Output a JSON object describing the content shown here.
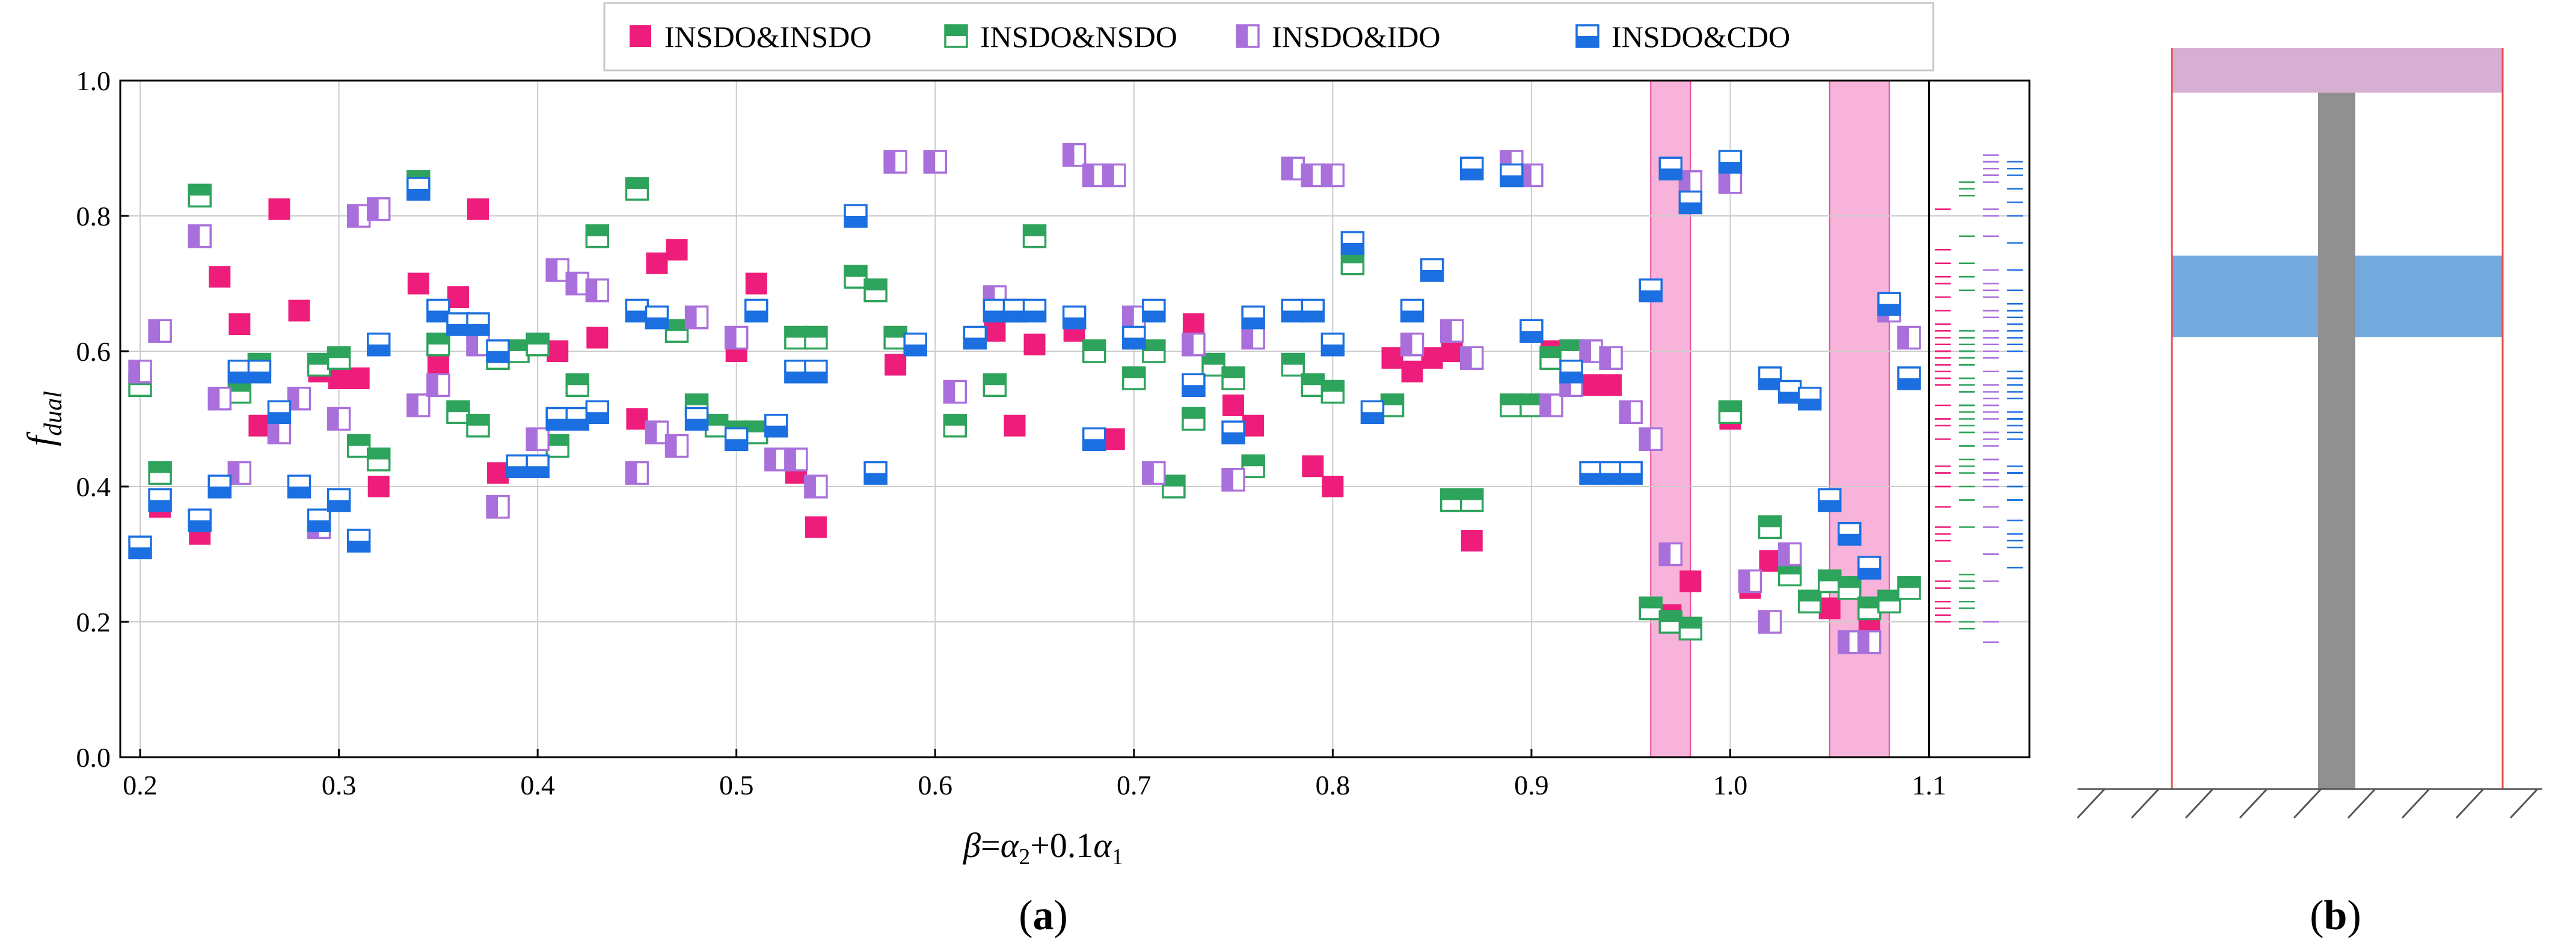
{
  "colors": {
    "INSDO&INSDO": "#ee1c7a",
    "INSDO&NSDO": "#2ea35c",
    "INSDO&IDO": "#a970db",
    "INSDO&CDO": "#1b6fe0",
    "band": "#f7a6d3",
    "grid": "#cccccc",
    "support_gray": "#909090",
    "support_pink": "#d7afd4",
    "support_blue": "#74a9dd",
    "support_red": "#e84b4b"
  },
  "panel_a": {
    "label_open": "(",
    "label_letter": "a",
    "label_close": ")"
  },
  "panel_b": {
    "label_open": "(",
    "label_letter": "b",
    "label_close": ")",
    "pink_range": [
      0.94,
      1.0
    ],
    "blue_range": [
      0.61,
      0.72
    ],
    "gray_top": 0.94
  },
  "chart_data": {
    "type": "scatter",
    "xlabel_beta": "β",
    "xlabel_eq": "=",
    "xlabel_a2": "α",
    "xlabel_a2_sub": "2",
    "xlabel_plus": "+0.1",
    "xlabel_a1": "α",
    "xlabel_a1_sub": "1",
    "ylabel_main": "f",
    "ylabel_sub": "dual",
    "xlim": [
      0.19,
      1.1
    ],
    "ylim": [
      0.0,
      1.0
    ],
    "xticks": [
      0.2,
      0.3,
      0.4,
      0.5,
      0.6,
      0.7,
      0.8,
      0.9,
      1.0,
      1.1
    ],
    "xtick_labels": [
      "0.2",
      "0.3",
      "0.4",
      "0.5",
      "0.6",
      "0.7",
      "0.8",
      "0.9",
      "1.0",
      "1.1"
    ],
    "yticks": [
      0.0,
      0.2,
      0.4,
      0.6,
      0.8,
      1.0
    ],
    "ytick_labels": [
      "0.0",
      "0.2",
      "0.4",
      "0.6",
      "0.8",
      "1.0"
    ],
    "grid": true,
    "legend_position": "top",
    "shaded_x_ranges": [
      [
        0.96,
        0.98
      ],
      [
        1.05,
        1.08
      ]
    ],
    "series": [
      {
        "name": "INSDO&INSDO",
        "marker": "filled",
        "x": [
          0.21,
          0.23,
          0.24,
          0.25,
          0.26,
          0.27,
          0.28,
          0.29,
          0.3,
          0.31,
          0.32,
          0.34,
          0.35,
          0.36,
          0.37,
          0.38,
          0.41,
          0.43,
          0.45,
          0.46,
          0.47,
          0.5,
          0.51,
          0.53,
          0.54,
          0.58,
          0.63,
          0.64,
          0.65,
          0.67,
          0.69,
          0.71,
          0.73,
          0.75,
          0.76,
          0.79,
          0.8,
          0.83,
          0.84,
          0.85,
          0.86,
          0.87,
          0.91,
          0.93,
          0.94,
          0.97,
          0.98,
          1.0,
          1.01,
          1.02,
          1.05,
          1.07,
          1.08
        ],
        "y": [
          0.37,
          0.33,
          0.71,
          0.64,
          0.49,
          0.81,
          0.66,
          0.57,
          0.56,
          0.56,
          0.4,
          0.7,
          0.58,
          0.68,
          0.81,
          0.42,
          0.6,
          0.62,
          0.5,
          0.73,
          0.75,
          0.6,
          0.7,
          0.42,
          0.34,
          0.58,
          0.63,
          0.49,
          0.61,
          0.63,
          0.47,
          0.6,
          0.64,
          0.52,
          0.49,
          0.43,
          0.4,
          0.59,
          0.57,
          0.59,
          0.6,
          0.32,
          0.6,
          0.55,
          0.55,
          0.21,
          0.26,
          0.5,
          0.25,
          0.29,
          0.22,
          0.2,
          0.23
        ]
      },
      {
        "name": "INSDO&NSDO",
        "marker": "top-filled",
        "x": [
          0.2,
          0.21,
          0.23,
          0.25,
          0.26,
          0.29,
          0.3,
          0.31,
          0.32,
          0.34,
          0.35,
          0.36,
          0.37,
          0.38,
          0.39,
          0.4,
          0.41,
          0.42,
          0.43,
          0.45,
          0.47,
          0.48,
          0.49,
          0.5,
          0.51,
          0.53,
          0.54,
          0.56,
          0.57,
          0.58,
          0.61,
          0.63,
          0.65,
          0.68,
          0.7,
          0.71,
          0.72,
          0.73,
          0.74,
          0.75,
          0.76,
          0.78,
          0.79,
          0.8,
          0.81,
          0.83,
          0.86,
          0.87,
          0.89,
          0.9,
          0.91,
          0.92,
          0.96,
          0.97,
          0.98,
          1.0,
          1.02,
          1.03,
          1.04,
          1.05,
          1.06,
          1.07,
          1.08,
          1.09
        ],
        "y": [
          0.55,
          0.42,
          0.83,
          0.54,
          0.58,
          0.58,
          0.59,
          0.46,
          0.44,
          0.85,
          0.61,
          0.51,
          0.49,
          0.59,
          0.6,
          0.61,
          0.46,
          0.55,
          0.77,
          0.84,
          0.63,
          0.52,
          0.49,
          0.48,
          0.48,
          0.62,
          0.62,
          0.71,
          0.69,
          0.62,
          0.49,
          0.55,
          0.77,
          0.6,
          0.56,
          0.6,
          0.4,
          0.5,
          0.58,
          0.56,
          0.43,
          0.58,
          0.55,
          0.54,
          0.73,
          0.52,
          0.38,
          0.38,
          0.52,
          0.52,
          0.59,
          0.6,
          0.22,
          0.2,
          0.19,
          0.51,
          0.34,
          0.27,
          0.23,
          0.26,
          0.25,
          0.22,
          0.23,
          0.25
        ]
      },
      {
        "name": "INSDO&IDO",
        "marker": "left-filled",
        "x": [
          0.2,
          0.21,
          0.23,
          0.24,
          0.25,
          0.27,
          0.28,
          0.29,
          0.3,
          0.31,
          0.32,
          0.34,
          0.35,
          0.37,
          0.38,
          0.4,
          0.41,
          0.42,
          0.43,
          0.45,
          0.46,
          0.47,
          0.48,
          0.5,
          0.52,
          0.53,
          0.54,
          0.58,
          0.6,
          0.61,
          0.63,
          0.64,
          0.67,
          0.68,
          0.69,
          0.7,
          0.71,
          0.73,
          0.75,
          0.76,
          0.78,
          0.79,
          0.8,
          0.84,
          0.86,
          0.87,
          0.89,
          0.9,
          0.91,
          0.92,
          0.93,
          0.94,
          0.95,
          0.96,
          0.97,
          0.98,
          1.0,
          1.01,
          1.02,
          1.03,
          1.06,
          1.07,
          1.08,
          1.09
        ],
        "y": [
          0.57,
          0.63,
          0.77,
          0.53,
          0.42,
          0.48,
          0.53,
          0.34,
          0.5,
          0.8,
          0.81,
          0.52,
          0.55,
          0.61,
          0.37,
          0.47,
          0.72,
          0.7,
          0.69,
          0.42,
          0.48,
          0.46,
          0.65,
          0.62,
          0.44,
          0.44,
          0.4,
          0.88,
          0.88,
          0.54,
          0.68,
          0.66,
          0.89,
          0.86,
          0.86,
          0.65,
          0.42,
          0.61,
          0.41,
          0.62,
          0.87,
          0.86,
          0.86,
          0.61,
          0.63,
          0.59,
          0.88,
          0.86,
          0.52,
          0.55,
          0.6,
          0.59,
          0.51,
          0.47,
          0.3,
          0.85,
          0.85,
          0.26,
          0.2,
          0.3,
          0.17,
          0.17,
          0.66,
          0.62
        ]
      },
      {
        "name": "INSDO&CDO",
        "marker": "top-open",
        "x": [
          0.2,
          0.21,
          0.23,
          0.24,
          0.25,
          0.26,
          0.27,
          0.28,
          0.29,
          0.3,
          0.31,
          0.32,
          0.34,
          0.35,
          0.36,
          0.37,
          0.38,
          0.39,
          0.4,
          0.41,
          0.42,
          0.43,
          0.45,
          0.46,
          0.48,
          0.5,
          0.51,
          0.52,
          0.53,
          0.54,
          0.56,
          0.57,
          0.59,
          0.62,
          0.63,
          0.64,
          0.65,
          0.67,
          0.68,
          0.7,
          0.71,
          0.73,
          0.75,
          0.76,
          0.78,
          0.79,
          0.8,
          0.81,
          0.82,
          0.84,
          0.85,
          0.87,
          0.89,
          0.9,
          0.92,
          0.93,
          0.94,
          0.95,
          0.96,
          0.97,
          0.98,
          1.0,
          1.02,
          1.03,
          1.04,
          1.05,
          1.06,
          1.07,
          1.08,
          1.09
        ],
        "y": [
          0.31,
          0.38,
          0.35,
          0.4,
          0.57,
          0.57,
          0.51,
          0.4,
          0.35,
          0.38,
          0.32,
          0.61,
          0.84,
          0.66,
          0.64,
          0.64,
          0.6,
          0.43,
          0.43,
          0.5,
          0.5,
          0.51,
          0.66,
          0.65,
          0.5,
          0.47,
          0.66,
          0.49,
          0.57,
          0.57,
          0.8,
          0.42,
          0.61,
          0.62,
          0.66,
          0.66,
          0.66,
          0.65,
          0.47,
          0.62,
          0.66,
          0.55,
          0.48,
          0.65,
          0.66,
          0.66,
          0.61,
          0.76,
          0.51,
          0.66,
          0.72,
          0.87,
          0.86,
          0.63,
          0.57,
          0.42,
          0.42,
          0.42,
          0.69,
          0.87,
          0.82,
          0.88,
          0.56,
          0.54,
          0.53,
          0.38,
          0.33,
          0.28,
          0.67,
          0.56
        ]
      }
    ]
  }
}
